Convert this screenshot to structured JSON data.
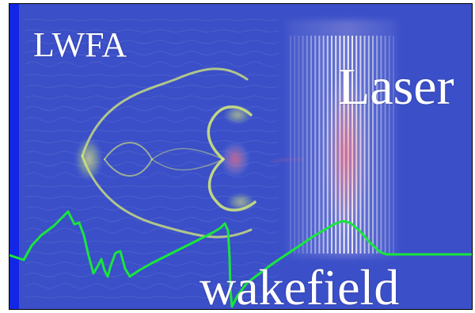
{
  "labels": {
    "lwfa": "LWFA",
    "laser": "Laser",
    "wakefield": "wakefield"
  },
  "colors": {
    "background": "#3b4fc8",
    "left_boundary": "#1326e6",
    "plasma_structure": "#d8ec78",
    "laser_core": "#ff6a7a",
    "wakefield_line": "#19e63c",
    "text": "#ffffff",
    "frame": "#000000"
  }
}
